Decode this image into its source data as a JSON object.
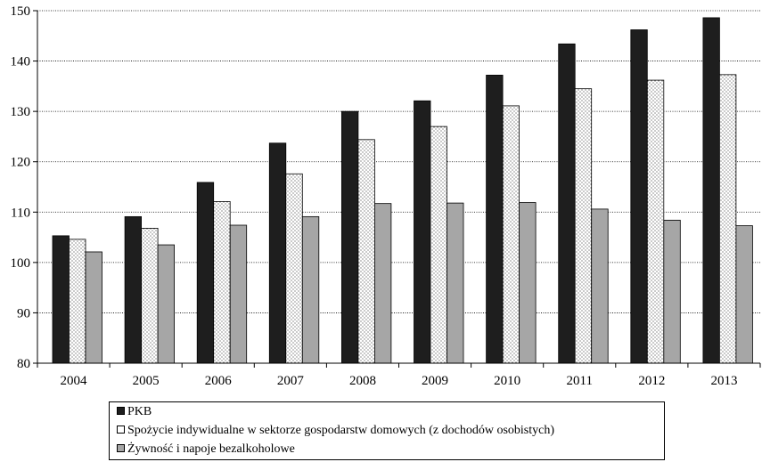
{
  "chart_data": {
    "type": "bar",
    "title": "",
    "xlabel": "",
    "ylabel": "",
    "ylim": [
      80,
      150
    ],
    "yticks": [
      80,
      90,
      100,
      110,
      120,
      130,
      140,
      150
    ],
    "grid": "horizontal dotted",
    "legend_position": "bottom",
    "categories": [
      "2004",
      "2005",
      "2006",
      "2007",
      "2008",
      "2009",
      "2010",
      "2011",
      "2012",
      "2013"
    ],
    "series": [
      {
        "name": "PKB",
        "color": "#1e1e1e",
        "values": [
          105.3,
          109.1,
          115.9,
          123.7,
          130.0,
          132.1,
          137.2,
          143.4,
          146.2,
          148.6
        ]
      },
      {
        "name": "Spożycie indywidualne w sektorze gospodarstw domowych (z dochodów osobistych)",
        "color": "#ffffff",
        "pattern": "dots",
        "values": [
          104.6,
          106.8,
          112.1,
          117.6,
          124.4,
          127.0,
          131.1,
          134.5,
          136.2,
          137.3
        ]
      },
      {
        "name": "Żywność i napoje bezalkoholowe",
        "color": "#a6a6a6",
        "values": [
          102.1,
          103.5,
          107.4,
          109.1,
          111.7,
          111.8,
          111.9,
          110.6,
          108.4,
          107.3
        ]
      }
    ]
  }
}
